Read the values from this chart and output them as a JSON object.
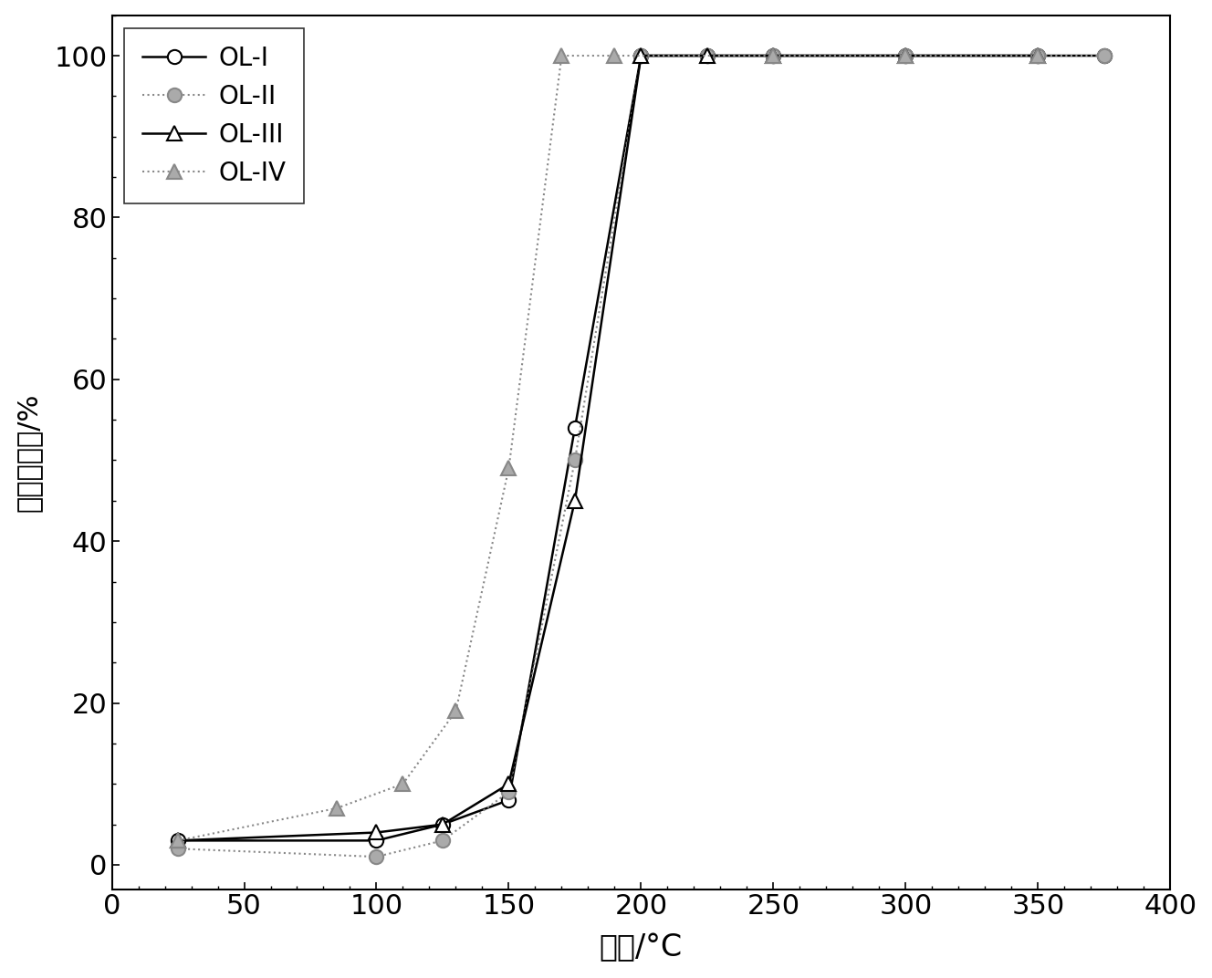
{
  "series": [
    {
      "label": "OL-I",
      "x": [
        25,
        100,
        125,
        150,
        175,
        200,
        225,
        250,
        300,
        350,
        375
      ],
      "y": [
        3,
        3,
        5,
        8,
        54,
        100,
        100,
        100,
        100,
        100,
        100
      ],
      "color": "black",
      "linestyle": "-",
      "marker": "o",
      "marker_facecolor": "white",
      "marker_edgecolor": "black",
      "markersize": 11,
      "linewidth": 1.8
    },
    {
      "label": "OL-II",
      "x": [
        25,
        100,
        125,
        150,
        175,
        200,
        225,
        250,
        300,
        350,
        375
      ],
      "y": [
        2,
        1,
        3,
        9,
        50,
        100,
        100,
        100,
        100,
        100,
        100
      ],
      "color": "#888888",
      "linestyle": ":",
      "marker": "o",
      "marker_facecolor": "#aaaaaa",
      "marker_edgecolor": "#888888",
      "markersize": 11,
      "linewidth": 1.5
    },
    {
      "label": "OL-III",
      "x": [
        25,
        100,
        125,
        150,
        175,
        200,
        225,
        250,
        300,
        350
      ],
      "y": [
        3,
        4,
        5,
        10,
        45,
        100,
        100,
        100,
        100,
        100
      ],
      "color": "black",
      "linestyle": "-",
      "marker": "^",
      "marker_facecolor": "white",
      "marker_edgecolor": "black",
      "markersize": 12,
      "linewidth": 1.8
    },
    {
      "label": "OL-IV",
      "x": [
        25,
        85,
        110,
        130,
        150,
        170,
        190,
        250,
        300,
        350
      ],
      "y": [
        3,
        7,
        10,
        19,
        49,
        100,
        100,
        100,
        100,
        100
      ],
      "color": "#888888",
      "linestyle": ":",
      "marker": "^",
      "marker_facecolor": "#aaaaaa",
      "marker_edgecolor": "#888888",
      "markersize": 12,
      "linewidth": 1.5
    }
  ],
  "xlabel": "温度/°C",
  "ylabel": "甲苯转化率/%",
  "xlim": [
    0,
    400
  ],
  "ylim": [
    -3,
    105
  ],
  "xticks": [
    0,
    50,
    100,
    150,
    200,
    250,
    300,
    350,
    400
  ],
  "yticks": [
    0,
    20,
    40,
    60,
    80,
    100
  ],
  "xlabel_fontsize": 24,
  "ylabel_fontsize": 22,
  "tick_fontsize": 22,
  "legend_fontsize": 20,
  "background_color": "#ffffff"
}
